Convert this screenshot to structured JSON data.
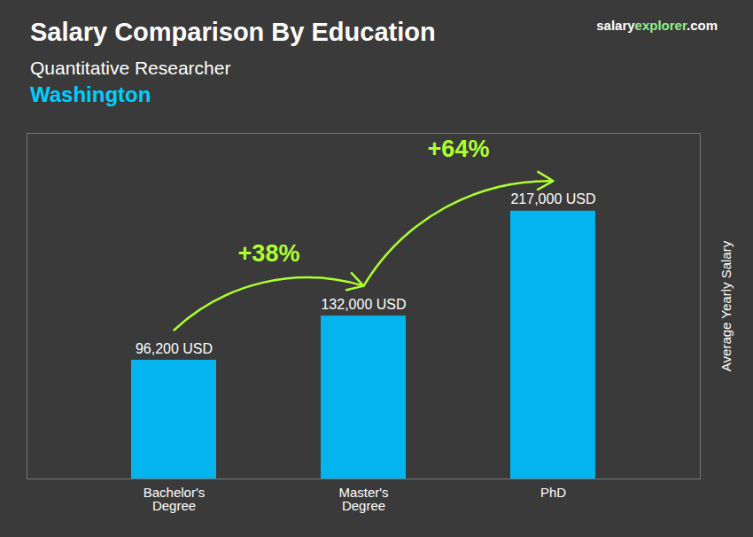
{
  "chart_data": {
    "type": "bar",
    "title": "Salary Comparison By Education",
    "subtitle": "Quantitative Researcher",
    "location": {
      "text": "Washington",
      "color": "#00CFFF"
    },
    "site": [
      {
        "text": "salary",
        "color": "#FFFFFF"
      },
      {
        "text": "explorer",
        "color": "#90EE90"
      },
      {
        "text": ".com",
        "color": "#FFFFFF"
      }
    ],
    "categories": [
      "Bachelor's\nDegree",
      "Master's\nDegree",
      "PhD"
    ],
    "values": [
      96200,
      132000,
      217000
    ],
    "value_labels": [
      "96,200 USD",
      "132,000 USD",
      "217,000 USD"
    ],
    "data_labels": true,
    "color": "#00BFFF",
    "ylabel": "Average Yearly Salary",
    "ylim": [
      0,
      280000
    ],
    "yticks": [],
    "tick_labels": "x",
    "grid": false,
    "annotations": [
      {
        "text": "+38%",
        "from": "Bachelor's\nDegree",
        "to": "Master's\nDegree",
        "color": "#ADFF2F"
      },
      {
        "text": "+64%",
        "from": "Master's\nDegree",
        "to": "PhD",
        "color": "#ADFF2F"
      }
    ]
  }
}
